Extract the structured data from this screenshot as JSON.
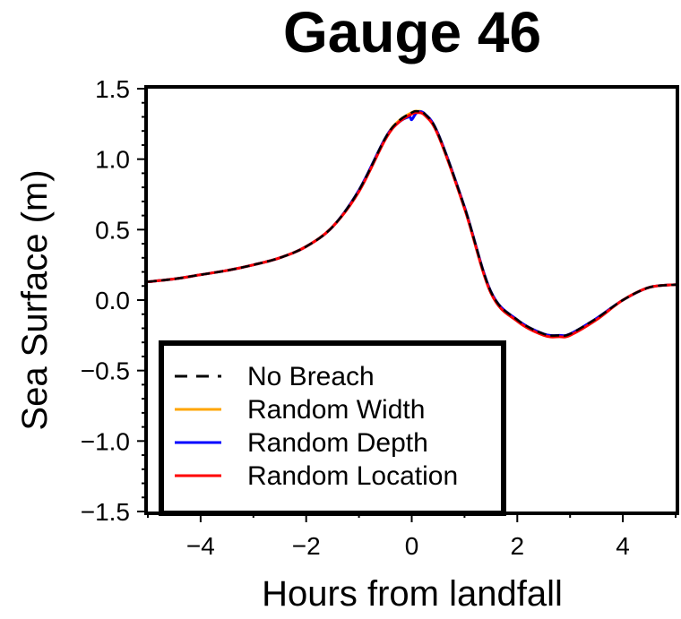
{
  "chart_data": {
    "type": "line",
    "title": "Gauge 46",
    "xlabel": "Hours from landfall",
    "ylabel": "Sea Surface (m)",
    "xlim": [
      -5,
      5
    ],
    "ylim": [
      -1.5,
      1.5
    ],
    "xticks": [
      -4,
      -2,
      0,
      2,
      4
    ],
    "xtick_labels": [
      "−4",
      "−2",
      "0",
      "2",
      "4"
    ],
    "yticks": [
      -1.5,
      -1.0,
      -0.5,
      0.0,
      0.5,
      1.0,
      1.5
    ],
    "ytick_labels": [
      "−1.5",
      "−1.0",
      "−0.5",
      "0.0",
      "0.5",
      "1.0",
      "1.5"
    ],
    "legend_position": "lower-left",
    "grid": false,
    "series": [
      {
        "name": "No Breach",
        "color": "#000000",
        "style": "dashed",
        "x": [
          -5,
          -4.5,
          -4,
          -3.5,
          -3,
          -2.5,
          -2,
          -1.5,
          -1,
          -0.5,
          -0.25,
          0,
          0.1,
          0.25,
          0.5,
          1,
          1.5,
          2,
          2.5,
          2.8,
          3,
          3.5,
          4,
          4.5,
          5
        ],
        "y": [
          0.13,
          0.15,
          0.18,
          0.21,
          0.25,
          0.3,
          0.38,
          0.52,
          0.78,
          1.15,
          1.27,
          1.33,
          1.34,
          1.32,
          1.18,
          0.66,
          0.06,
          -0.14,
          -0.24,
          -0.25,
          -0.24,
          -0.13,
          0.0,
          0.09,
          0.11
        ]
      },
      {
        "name": "Random Width",
        "color": "#ffa500",
        "style": "solid",
        "x": [
          -5,
          -4.5,
          -4,
          -3.5,
          -3,
          -2.5,
          -2,
          -1.5,
          -1,
          -0.5,
          -0.25,
          0,
          0.1,
          0.25,
          0.5,
          1,
          1.5,
          2,
          2.5,
          2.8,
          3,
          3.5,
          4,
          4.5,
          5
        ],
        "y": [
          0.13,
          0.15,
          0.18,
          0.21,
          0.25,
          0.3,
          0.38,
          0.52,
          0.78,
          1.15,
          1.27,
          1.33,
          1.34,
          1.32,
          1.18,
          0.66,
          0.06,
          -0.14,
          -0.24,
          -0.25,
          -0.24,
          -0.13,
          0.0,
          0.09,
          0.11
        ]
      },
      {
        "name": "Random Depth",
        "color": "#0000ff",
        "style": "solid",
        "x": [
          -5,
          -4.5,
          -4,
          -3.5,
          -3,
          -2.5,
          -2,
          -1.5,
          -1,
          -0.5,
          -0.25,
          -0.05,
          0.0,
          0.1,
          0.25,
          0.5,
          1,
          1.5,
          2,
          2.5,
          2.8,
          3,
          3.5,
          4,
          4.5,
          5
        ],
        "y": [
          0.13,
          0.15,
          0.18,
          0.21,
          0.25,
          0.3,
          0.38,
          0.52,
          0.78,
          1.15,
          1.26,
          1.3,
          1.28,
          1.33,
          1.32,
          1.18,
          0.66,
          0.06,
          -0.14,
          -0.24,
          -0.25,
          -0.24,
          -0.13,
          0.0,
          0.09,
          0.11
        ]
      },
      {
        "name": "Random Location",
        "color": "#ff0000",
        "style": "solid",
        "x": [
          -5,
          -4.5,
          -4,
          -3.5,
          -3,
          -2.5,
          -2,
          -1.5,
          -1,
          -0.5,
          -0.25,
          0,
          0.1,
          0.25,
          0.5,
          1,
          1.5,
          2,
          2.5,
          2.8,
          3,
          3.5,
          4,
          4.5,
          5
        ],
        "y": [
          0.13,
          0.15,
          0.18,
          0.21,
          0.25,
          0.3,
          0.38,
          0.52,
          0.77,
          1.14,
          1.26,
          1.32,
          1.33,
          1.31,
          1.17,
          0.65,
          0.05,
          -0.15,
          -0.25,
          -0.26,
          -0.25,
          -0.14,
          0.0,
          0.09,
          0.11
        ]
      }
    ]
  }
}
